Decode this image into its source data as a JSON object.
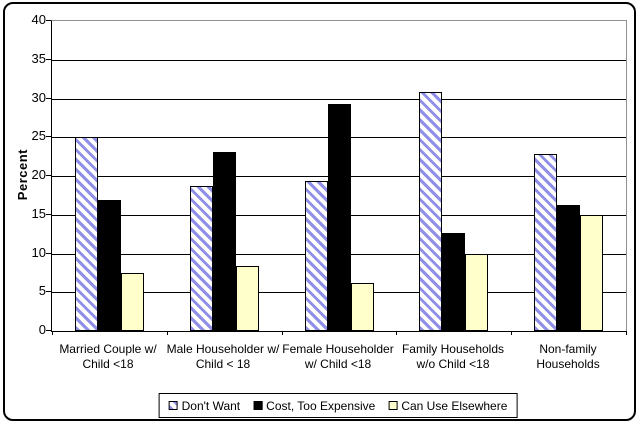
{
  "colors": {
    "hatch_stripe": "#8f8fe8",
    "hatch_background": "#ffffff",
    "bar_black": "#000000",
    "bar_yellow": "#ffffcc",
    "plot_border": "#909090",
    "gridline": "#000000",
    "frame_border": "#000000"
  },
  "y_axis": {
    "title": "Percent",
    "tick_labels": [
      "0",
      "5",
      "10",
      "15",
      "20",
      "25",
      "30",
      "35",
      "40"
    ]
  },
  "category_label_lines": [
    "Married Couple w/\nChild <18",
    "Male Householder w/\nChild < 18",
    "Female Householder\nw/ Child <18",
    "Family Households\nw/o Child <18",
    "Non-family\nHouseholds"
  ],
  "chart_data": {
    "type": "bar",
    "categories": [
      "Married Couple w/ Child <18",
      "Male Householder w/ Child < 18",
      "Female Householder w/ Child <18",
      "Family Households w/o Child <18",
      "Non-family Households"
    ],
    "series": [
      {
        "name": "Don't Want",
        "fill": "hatch",
        "values": [
          25.0,
          18.7,
          19.4,
          30.9,
          22.9
        ]
      },
      {
        "name": "Cost, Too Expensive",
        "fill": "black",
        "values": [
          16.9,
          23.1,
          29.3,
          12.6,
          16.3
        ]
      },
      {
        "name": "Can Use Elsewhere",
        "fill": "yellow",
        "values": [
          7.5,
          8.4,
          6.2,
          9.9,
          15.0
        ]
      }
    ],
    "title": "",
    "xlabel": "",
    "ylabel": "Percent",
    "ylim": [
      0,
      40
    ],
    "ytick_step": 5,
    "grid": true,
    "legend_position": "bottom"
  }
}
